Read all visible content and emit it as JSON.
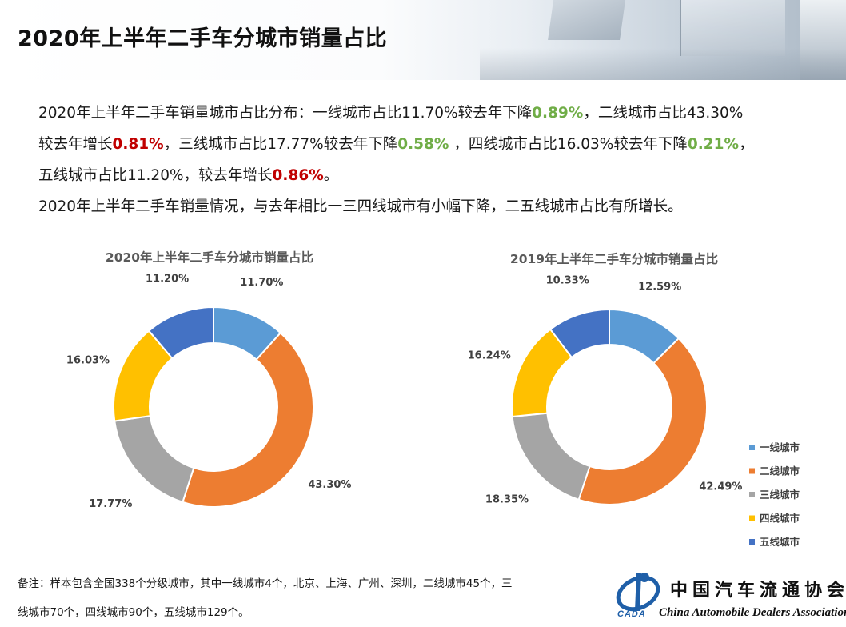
{
  "page": {
    "title": "2020年上半年二手车分城市销量占比"
  },
  "summary": {
    "line1_a": "2020年上半年二手车销量城市占比分布：一线城市占比11.70%较去年下降",
    "line1_b": "0.89%",
    "line1_c": "，二线城市占比43.30%",
    "line2_a": "较去年增长",
    "line2_b": "0.81%",
    "line2_c": "，三线城市占比17.77%较去年下降",
    "line2_d": "0.58%",
    "line2_e": " ，四线城市占比16.03%较去年下降",
    "line2_f": "0.21%",
    "line2_g": "，",
    "line3_a": "五线城市占比11.20%，较去年增长",
    "line3_b": "0.86%",
    "line3_c": "。",
    "line4": "2020年上半年二手车销量情况，与去年相比一三四线城市有小幅下降，二五线城市占比有所增长。"
  },
  "chart_data": [
    {
      "type": "pie",
      "title": "2020年上半年二手车分城市销量占比",
      "categories": [
        "一线城市",
        "二线城市",
        "三线城市",
        "四线城市",
        "五线城市"
      ],
      "values": [
        11.7,
        43.3,
        17.77,
        16.03,
        11.2
      ],
      "labels": [
        "11.70%",
        "43.30%",
        "17.77%",
        "16.03%",
        "11.20%"
      ],
      "colors": [
        "#5b9bd5",
        "#ed7d31",
        "#a5a5a5",
        "#ffc000",
        "#4472c4"
      ],
      "donut": true
    },
    {
      "type": "pie",
      "title": "2019年上半年二手车分城市销量占比",
      "categories": [
        "一线城市",
        "二线城市",
        "三线城市",
        "四线城市",
        "五线城市"
      ],
      "values": [
        12.59,
        42.49,
        18.35,
        16.24,
        10.33
      ],
      "labels": [
        "12.59%",
        "42.49%",
        "18.35%",
        "16.24%",
        "10.33%"
      ],
      "colors": [
        "#5b9bd5",
        "#ed7d31",
        "#a5a5a5",
        "#ffc000",
        "#4472c4"
      ],
      "donut": true,
      "legend": "right-bottom"
    }
  ],
  "footnote": {
    "line1": "备注：样本包含全国338个分级城市，其中一线城市4个，北京、上海、广州、深圳，二线城市45个，三",
    "line2": "线城市70个，四线城市90个，五线城市129个。"
  },
  "logo": {
    "name_cn": "中国汽车流通协会",
    "name_en": "China Automobile Dealers Association",
    "abbr": "CADA"
  }
}
